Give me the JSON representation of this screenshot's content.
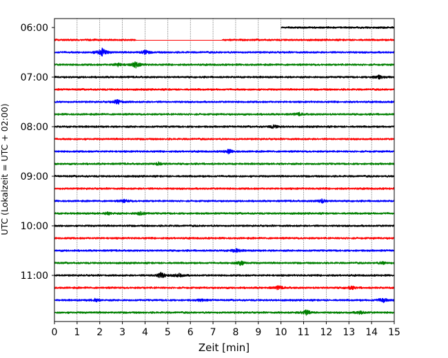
{
  "chart_data": {
    "type": "line",
    "title": "",
    "xlabel": "Zeit  [min]",
    "ylabel": "UTC (Lokalzeit = UTC + 02:00)",
    "xlim": [
      0,
      15
    ],
    "x_ticks": [
      "0",
      "1",
      "2",
      "3",
      "4",
      "5",
      "6",
      "7",
      "8",
      "9",
      "10",
      "11",
      "12",
      "13",
      "14",
      "15"
    ],
    "y_ticks": [
      "06:00",
      "07:00",
      "08:00",
      "09:00",
      "10:00",
      "11:00"
    ],
    "y_tick_rows": [
      0,
      4,
      8,
      12,
      16,
      20
    ],
    "grid": "vertical dotted lines at each minute",
    "trace_colors": [
      "#000000",
      "#ff0000",
      "#0000ff",
      "#008000"
    ],
    "rows": [
      {
        "start_time": "06:00",
        "color": "#000000",
        "x_start": 10,
        "x_end": 15,
        "events": []
      },
      {
        "start_time": "06:15",
        "color": "#ff0000",
        "x_start": 0,
        "x_end": 15,
        "gap": [
          3.6,
          7.4
        ],
        "events": []
      },
      {
        "start_time": "06:30",
        "color": "#0000ff",
        "x_start": 0,
        "x_end": 15,
        "events": [
          {
            "x": 2.1,
            "amp": 1.2
          },
          {
            "x": 4.0,
            "amp": 0.5
          }
        ]
      },
      {
        "start_time": "06:45",
        "color": "#008000",
        "x_start": 0,
        "x_end": 15,
        "events": [
          {
            "x": 3.6,
            "amp": 0.8
          },
          {
            "x": 2.8,
            "amp": 0.4
          }
        ]
      },
      {
        "start_time": "07:00",
        "color": "#000000",
        "x_start": 0,
        "x_end": 15,
        "events": [
          {
            "x": 14.3,
            "amp": 0.5
          }
        ]
      },
      {
        "start_time": "07:15",
        "color": "#ff0000",
        "x_start": 0,
        "x_end": 15,
        "events": []
      },
      {
        "start_time": "07:30",
        "color": "#0000ff",
        "x_start": 0,
        "x_end": 15,
        "events": [
          {
            "x": 2.8,
            "amp": 0.6
          }
        ]
      },
      {
        "start_time": "07:45",
        "color": "#008000",
        "x_start": 0,
        "x_end": 15,
        "events": [
          {
            "x": 10.8,
            "amp": 0.3
          }
        ]
      },
      {
        "start_time": "08:00",
        "color": "#000000",
        "x_start": 0,
        "x_end": 15,
        "events": [
          {
            "x": 9.7,
            "amp": 0.4
          }
        ]
      },
      {
        "start_time": "08:15",
        "color": "#ff0000",
        "x_start": 0,
        "x_end": 15,
        "events": []
      },
      {
        "start_time": "08:30",
        "color": "#0000ff",
        "x_start": 0,
        "x_end": 15,
        "events": [
          {
            "x": 7.7,
            "amp": 0.5
          }
        ]
      },
      {
        "start_time": "08:45",
        "color": "#008000",
        "x_start": 0,
        "x_end": 15,
        "events": [
          {
            "x": 4.6,
            "amp": 0.35
          }
        ]
      },
      {
        "start_time": "09:00",
        "color": "#000000",
        "x_start": 0,
        "x_end": 15,
        "events": []
      },
      {
        "start_time": "09:15",
        "color": "#ff0000",
        "x_start": 0,
        "x_end": 15,
        "events": []
      },
      {
        "start_time": "09:30",
        "color": "#0000ff",
        "x_start": 0,
        "x_end": 15,
        "events": [
          {
            "x": 11.8,
            "amp": 0.5
          },
          {
            "x": 3.1,
            "amp": 0.35
          }
        ]
      },
      {
        "start_time": "09:45",
        "color": "#008000",
        "x_start": 0,
        "x_end": 15,
        "events": [
          {
            "x": 3.8,
            "amp": 0.45
          },
          {
            "x": 2.4,
            "amp": 0.3
          }
        ]
      },
      {
        "start_time": "10:00",
        "color": "#000000",
        "x_start": 0,
        "x_end": 15,
        "events": []
      },
      {
        "start_time": "10:15",
        "color": "#ff0000",
        "x_start": 0,
        "x_end": 15,
        "events": []
      },
      {
        "start_time": "10:30",
        "color": "#0000ff",
        "x_start": 0,
        "x_end": 15,
        "events": [
          {
            "x": 8.0,
            "amp": 0.5
          }
        ]
      },
      {
        "start_time": "10:45",
        "color": "#008000",
        "x_start": 0,
        "x_end": 15,
        "events": [
          {
            "x": 8.2,
            "amp": 0.6
          },
          {
            "x": 14.5,
            "amp": 0.3
          }
        ]
      },
      {
        "start_time": "11:00",
        "color": "#000000",
        "x_start": 0,
        "x_end": 15,
        "events": [
          {
            "x": 4.7,
            "amp": 0.8
          },
          {
            "x": 5.5,
            "amp": 0.5
          }
        ]
      },
      {
        "start_time": "11:15",
        "color": "#ff0000",
        "x_start": 0,
        "x_end": 15,
        "events": [
          {
            "x": 9.9,
            "amp": 0.45
          },
          {
            "x": 13.1,
            "amp": 0.4
          }
        ]
      },
      {
        "start_time": "11:30",
        "color": "#0000ff",
        "x_start": 0,
        "x_end": 15,
        "events": [
          {
            "x": 14.5,
            "amp": 0.6
          },
          {
            "x": 1.8,
            "amp": 0.35
          },
          {
            "x": 6.5,
            "amp": 0.3
          }
        ]
      },
      {
        "start_time": "11:45",
        "color": "#008000",
        "x_start": 0,
        "x_end": 15,
        "events": [
          {
            "x": 11.1,
            "amp": 0.7
          },
          {
            "x": 13.5,
            "amp": 0.4
          }
        ]
      }
    ]
  }
}
